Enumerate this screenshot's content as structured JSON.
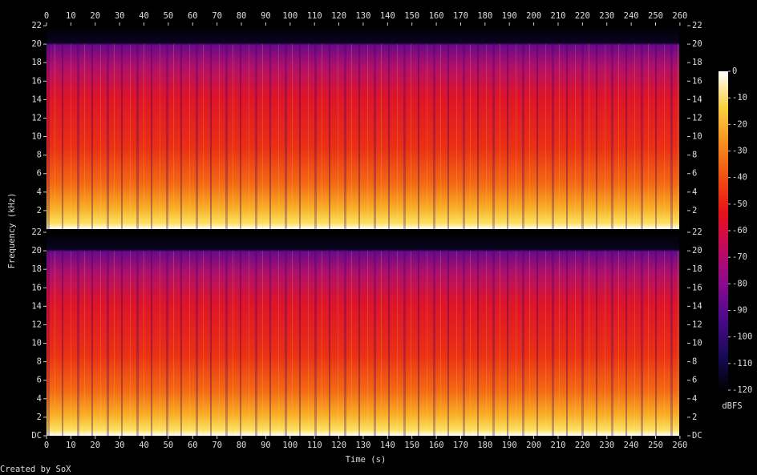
{
  "chart_data": {
    "type": "spectrogram",
    "x_label": "Time (s)",
    "y_label": "Frequency (kHz)",
    "xlim": [
      0,
      263
    ],
    "xticks": [
      0,
      10,
      20,
      30,
      40,
      50,
      60,
      70,
      80,
      90,
      100,
      110,
      120,
      130,
      140,
      150,
      160,
      170,
      180,
      190,
      200,
      210,
      220,
      230,
      240,
      250,
      260
    ],
    "panels": [
      {
        "ylim": [
          0,
          22
        ],
        "yticks": [
          2,
          4,
          6,
          8,
          10,
          12,
          14,
          16,
          18,
          20,
          22
        ]
      },
      {
        "ylim": [
          0,
          22
        ],
        "yticks": [
          {
            "value": 0,
            "label": "DC"
          },
          2,
          4,
          6,
          8,
          10,
          12,
          14,
          16,
          18,
          20,
          22
        ]
      }
    ],
    "colorbar": {
      "label": "dBFS",
      "lim": [
        -120,
        0
      ],
      "ticks": [
        0,
        -10,
        -20,
        -30,
        -40,
        -50,
        -60,
        -70,
        -80,
        -90,
        -100,
        -110,
        -120
      ],
      "colormap": [
        "#000000",
        "#1a0a5a",
        "#4a0a8a",
        "#8a0a90",
        "#c00a60",
        "#e8101a",
        "#f05010",
        "#f89020",
        "#fcd040",
        "#ffffff"
      ]
    },
    "credit": "Created by SoX"
  }
}
